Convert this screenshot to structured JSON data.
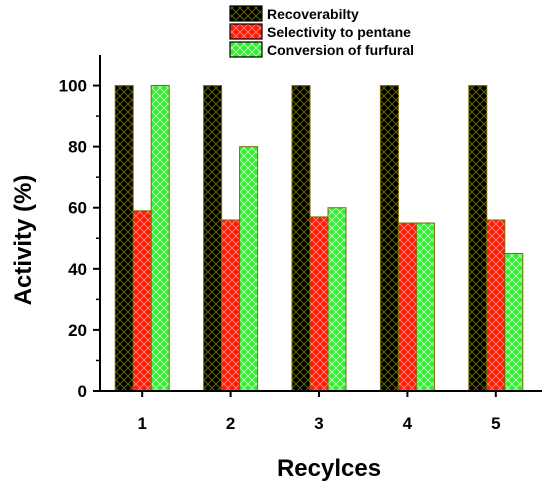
{
  "chart_data": {
    "type": "bar",
    "xlabel": "Recylces",
    "ylabel": "Activity (%)",
    "ylim": [
      0,
      110
    ],
    "yticks": [
      0,
      20,
      40,
      60,
      80,
      100
    ],
    "categories": [
      "1",
      "2",
      "3",
      "4",
      "5"
    ],
    "legend_position": "top-center",
    "grid": false,
    "series": [
      {
        "name": "Recoverabilty",
        "values": [
          100,
          100,
          100,
          100,
          100
        ],
        "color": "#000000",
        "pattern": "crosshatch",
        "hatch_color": "#6e6e00"
      },
      {
        "name": "Selectivity to pentane",
        "values": [
          59,
          56,
          57,
          55,
          56
        ],
        "color": "#ff1a00",
        "pattern": "crosshatch",
        "hatch_color": "#ff8c8c"
      },
      {
        "name": "Conversion of furfural",
        "values": [
          100,
          80,
          60,
          55,
          45
        ],
        "color": "#33ee33",
        "pattern": "crosshatch",
        "hatch_color": "#c8ffc8"
      }
    ]
  }
}
